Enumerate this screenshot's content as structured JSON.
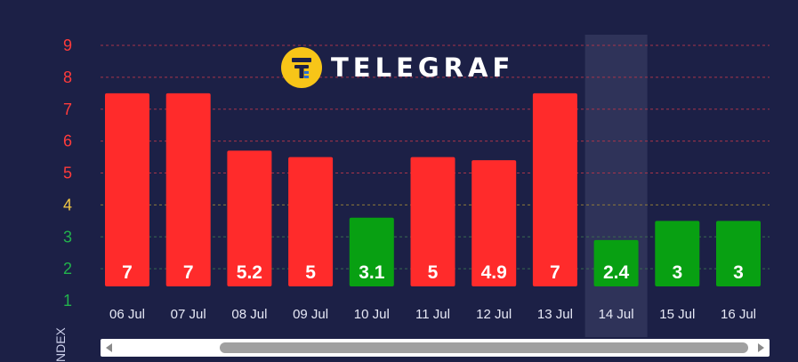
{
  "brand": {
    "name": "TELEGRAF",
    "logo_icon": "telegraf-t-icon",
    "badge_color": "#f7c518"
  },
  "axis_title_partial": "NDEX",
  "chart_data": {
    "type": "bar",
    "categories": [
      "06 Jul",
      "07 Jul",
      "08 Jul",
      "09 Jul",
      "10 Jul",
      "11 Jul",
      "12 Jul",
      "13 Jul",
      "14 Jul",
      "15 Jul",
      "16 Jul"
    ],
    "values": [
      7,
      7,
      5.2,
      5,
      3.1,
      5,
      4.9,
      7,
      2.4,
      3,
      3
    ],
    "value_labels": [
      "7",
      "7",
      "5.2",
      "5",
      "3.1",
      "5",
      "4.9",
      "7",
      "2.4",
      "3",
      "3"
    ],
    "y_ticks": [
      "1",
      "2",
      "3",
      "4",
      "5",
      "6",
      "7",
      "8",
      "9"
    ],
    "ylim": [
      1,
      9
    ],
    "highlighted_category": "14 Jul",
    "grid": true,
    "colors": {
      "high": "#ff2b2b",
      "low": "#08a012",
      "tick_high": "#ff3b3b",
      "tick_mid": "#f2c744",
      "tick_low": "#22b24c",
      "grid_high": "#a8344a",
      "grid_mid": "#8f7a3a",
      "grid_low": "#3a6a50",
      "highlight": "#2f3359"
    },
    "title": "",
    "xlabel": "",
    "ylabel": ""
  },
  "scrollbar": {
    "left_arrow": "scroll-left-icon",
    "right_arrow": "scroll-right-icon"
  }
}
